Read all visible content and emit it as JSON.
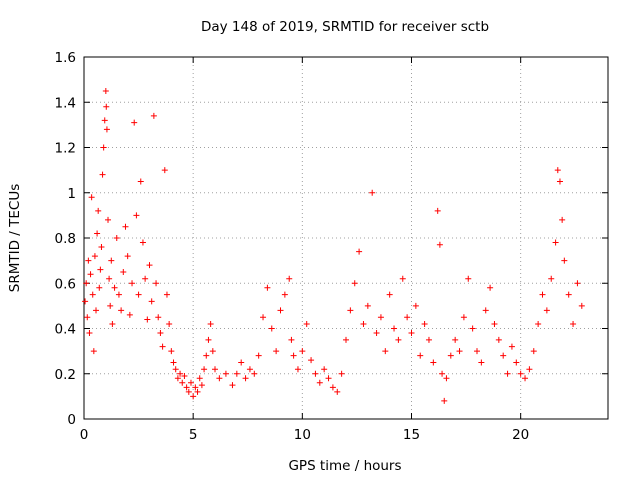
{
  "chart_data": {
    "type": "scatter",
    "title": "Day 148 of 2019, SRMTID for receiver sctb",
    "xlabel": "GPS time / hours",
    "ylabel": "SRMTID / TECUs",
    "xlim": [
      0,
      24
    ],
    "ylim": [
      0,
      1.6
    ],
    "x_ticks": [
      0,
      5,
      10,
      15,
      20
    ],
    "y_ticks": [
      0,
      0.2,
      0.4,
      0.6,
      0.8,
      1,
      1.2,
      1.4,
      1.6
    ],
    "x_tick_labels": [
      "0",
      "5",
      "10",
      "15",
      "20"
    ],
    "y_tick_labels": [
      "0",
      "0.2",
      "0.4",
      "0.6",
      "0.8",
      "1",
      "1.2",
      "1.4",
      "1.6"
    ],
    "grid": true,
    "marker": "+",
    "marker_color": "#ff0000",
    "series": [
      {
        "name": "SRMTID",
        "points": [
          [
            0.05,
            0.52
          ],
          [
            0.1,
            0.6
          ],
          [
            0.15,
            0.45
          ],
          [
            0.2,
            0.7
          ],
          [
            0.25,
            0.38
          ],
          [
            0.3,
            0.64
          ],
          [
            0.35,
            0.98
          ],
          [
            0.4,
            0.55
          ],
          [
            0.45,
            0.3
          ],
          [
            0.5,
            0.72
          ],
          [
            0.55,
            0.48
          ],
          [
            0.6,
            0.82
          ],
          [
            0.65,
            0.92
          ],
          [
            0.7,
            0.58
          ],
          [
            0.75,
            0.66
          ],
          [
            0.8,
            0.76
          ],
          [
            0.85,
            1.08
          ],
          [
            0.9,
            1.2
          ],
          [
            0.95,
            1.32
          ],
          [
            1.0,
            1.45
          ],
          [
            1.02,
            1.38
          ],
          [
            1.05,
            1.28
          ],
          [
            1.1,
            0.88
          ],
          [
            1.15,
            0.62
          ],
          [
            1.2,
            0.5
          ],
          [
            1.25,
            0.7
          ],
          [
            1.3,
            0.42
          ],
          [
            1.4,
            0.58
          ],
          [
            1.5,
            0.8
          ],
          [
            1.6,
            0.55
          ],
          [
            1.7,
            0.48
          ],
          [
            1.8,
            0.65
          ],
          [
            1.9,
            0.85
          ],
          [
            2.0,
            0.72
          ],
          [
            2.1,
            0.46
          ],
          [
            2.2,
            0.6
          ],
          [
            2.3,
            1.31
          ],
          [
            2.4,
            0.9
          ],
          [
            2.5,
            0.55
          ],
          [
            2.6,
            1.05
          ],
          [
            2.7,
            0.78
          ],
          [
            2.8,
            0.62
          ],
          [
            2.9,
            0.44
          ],
          [
            3.0,
            0.68
          ],
          [
            3.1,
            0.52
          ],
          [
            3.2,
            1.34
          ],
          [
            3.3,
            0.6
          ],
          [
            3.4,
            0.45
          ],
          [
            3.5,
            0.38
          ],
          [
            3.6,
            0.32
          ],
          [
            3.7,
            1.1
          ],
          [
            3.8,
            0.55
          ],
          [
            3.9,
            0.42
          ],
          [
            4.0,
            0.3
          ],
          [
            4.1,
            0.25
          ],
          [
            4.2,
            0.22
          ],
          [
            4.3,
            0.18
          ],
          [
            4.4,
            0.2
          ],
          [
            4.5,
            0.16
          ],
          [
            4.6,
            0.19
          ],
          [
            4.7,
            0.14
          ],
          [
            4.8,
            0.12
          ],
          [
            4.9,
            0.16
          ],
          [
            5.0,
            0.1
          ],
          [
            5.1,
            0.14
          ],
          [
            5.2,
            0.12
          ],
          [
            5.3,
            0.18
          ],
          [
            5.4,
            0.15
          ],
          [
            5.5,
            0.22
          ],
          [
            5.6,
            0.28
          ],
          [
            5.7,
            0.35
          ],
          [
            5.8,
            0.42
          ],
          [
            5.9,
            0.3
          ],
          [
            6.0,
            0.22
          ],
          [
            6.2,
            0.18
          ],
          [
            6.5,
            0.2
          ],
          [
            6.8,
            0.15
          ],
          [
            7.0,
            0.2
          ],
          [
            7.2,
            0.25
          ],
          [
            7.4,
            0.18
          ],
          [
            7.6,
            0.22
          ],
          [
            7.8,
            0.2
          ],
          [
            8.0,
            0.28
          ],
          [
            8.2,
            0.45
          ],
          [
            8.4,
            0.58
          ],
          [
            8.6,
            0.4
          ],
          [
            8.8,
            0.3
          ],
          [
            9.0,
            0.48
          ],
          [
            9.2,
            0.55
          ],
          [
            9.4,
            0.62
          ],
          [
            9.5,
            0.35
          ],
          [
            9.6,
            0.28
          ],
          [
            9.8,
            0.22
          ],
          [
            10.0,
            0.3
          ],
          [
            10.2,
            0.42
          ],
          [
            10.4,
            0.26
          ],
          [
            10.6,
            0.2
          ],
          [
            10.8,
            0.16
          ],
          [
            11.0,
            0.22
          ],
          [
            11.2,
            0.18
          ],
          [
            11.4,
            0.14
          ],
          [
            11.6,
            0.12
          ],
          [
            11.8,
            0.2
          ],
          [
            12.0,
            0.35
          ],
          [
            12.2,
            0.48
          ],
          [
            12.4,
            0.6
          ],
          [
            12.6,
            0.74
          ],
          [
            12.8,
            0.42
          ],
          [
            13.0,
            0.5
          ],
          [
            13.2,
            1.0
          ],
          [
            13.4,
            0.38
          ],
          [
            13.6,
            0.45
          ],
          [
            13.8,
            0.3
          ],
          [
            14.0,
            0.55
          ],
          [
            14.2,
            0.4
          ],
          [
            14.4,
            0.35
          ],
          [
            14.6,
            0.62
          ],
          [
            14.8,
            0.45
          ],
          [
            15.0,
            0.38
          ],
          [
            15.2,
            0.5
          ],
          [
            15.4,
            0.28
          ],
          [
            15.6,
            0.42
          ],
          [
            15.8,
            0.35
          ],
          [
            16.0,
            0.25
          ],
          [
            16.2,
            0.92
          ],
          [
            16.3,
            0.77
          ],
          [
            16.4,
            0.2
          ],
          [
            16.5,
            0.08
          ],
          [
            16.6,
            0.18
          ],
          [
            16.8,
            0.28
          ],
          [
            17.0,
            0.35
          ],
          [
            17.2,
            0.3
          ],
          [
            17.4,
            0.45
          ],
          [
            17.6,
            0.62
          ],
          [
            17.8,
            0.4
          ],
          [
            18.0,
            0.3
          ],
          [
            18.2,
            0.25
          ],
          [
            18.4,
            0.48
          ],
          [
            18.6,
            0.58
          ],
          [
            18.8,
            0.42
          ],
          [
            19.0,
            0.35
          ],
          [
            19.2,
            0.28
          ],
          [
            19.4,
            0.2
          ],
          [
            19.6,
            0.32
          ],
          [
            19.8,
            0.25
          ],
          [
            20.0,
            0.2
          ],
          [
            20.2,
            0.18
          ],
          [
            20.4,
            0.22
          ],
          [
            20.6,
            0.3
          ],
          [
            20.8,
            0.42
          ],
          [
            21.0,
            0.55
          ],
          [
            21.2,
            0.48
          ],
          [
            21.4,
            0.62
          ],
          [
            21.6,
            0.78
          ],
          [
            21.7,
            1.1
          ],
          [
            21.8,
            1.05
          ],
          [
            21.9,
            0.88
          ],
          [
            22.0,
            0.7
          ],
          [
            22.2,
            0.55
          ],
          [
            22.4,
            0.42
          ],
          [
            22.6,
            0.6
          ],
          [
            22.8,
            0.5
          ]
        ]
      }
    ]
  }
}
